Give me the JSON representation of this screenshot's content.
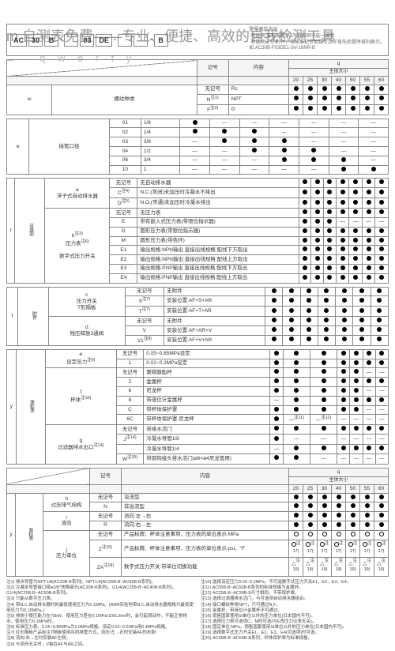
{
  "watermark": "m 自测表免费——专业、便捷、高效的自我检测工具",
  "wm2": "ch360",
  "qwerty": "q w e r t y",
  "header": {
    "cells": [
      "AC",
      "30",
      "B",
      "",
      "03",
      "DE",
      "",
      "",
      "B"
    ],
    "seps": [
      "",
      "",
      "",
      "-",
      "",
      "",
      "-",
      "",
      "-",
      ""
    ],
    "note_title": "型号表示方法",
    "notes": [
      "·可选项:准标准是从a~j的各项中选一通项",
      "·可选项记号:附件，准标准记号依数字及字母先后提序排列表示。",
      "如:AC30B-F03DE1-SV-16NR-B"
    ]
  },
  "th": {
    "mark": "记号",
    "content": "内容",
    "q": "q",
    "body": "主体大小"
  },
  "qcols": [
    "20",
    "25",
    "30",
    "40",
    "50",
    "55",
    "60"
  ],
  "sec_w": {
    "key": "w",
    "label": "螺纹种类",
    "rows": [
      {
        "m": "无记号",
        "c": "Rc",
        "v": [
          "●",
          "●",
          "●",
          "●",
          "●",
          "●",
          "●"
        ]
      },
      {
        "m": "N<sup>注1)</sup>",
        "c": "NPT",
        "v": [
          "●",
          "●",
          "●",
          "●",
          "●",
          "●",
          "●"
        ]
      },
      {
        "m": "F<sup>注2)</sup>",
        "c": "G",
        "v": [
          "●",
          "●",
          "●",
          "●",
          "●",
          "●",
          "●"
        ]
      }
    ]
  },
  "sec_e": {
    "key": "e",
    "label": "接管口径",
    "rows": [
      {
        "m": "01",
        "c": "1/8",
        "v": [
          "●",
          "—",
          "—",
          "—",
          "—",
          "—",
          "—"
        ]
      },
      {
        "m": "02",
        "c": "1/4",
        "v": [
          "●",
          "●",
          "●",
          "—",
          "—",
          "—",
          "—"
        ]
      },
      {
        "m": "03",
        "c": "3/8",
        "v": [
          "—",
          "●",
          "●",
          "●",
          "—",
          "—",
          "—"
        ]
      },
      {
        "m": "04",
        "c": "1/2",
        "v": [
          "—",
          "—",
          "●",
          "●",
          "●",
          "—",
          "—"
        ]
      },
      {
        "m": "06",
        "c": "3/4",
        "v": [
          "—",
          "—",
          "—",
          "●",
          "●",
          "●",
          "—"
        ]
      },
      {
        "m": "10",
        "c": "1",
        "v": [
          "—",
          "—",
          "—",
          "—",
          "—",
          "●",
          "●"
        ]
      }
    ]
  },
  "sec_r": {
    "key": "r",
    "side": "可选项",
    "grp_a": {
      "k": "a",
      "label": "浮子式自动排水器",
      "rows": [
        {
          "m": "无记号",
          "c": "无自动排水器",
          "v": [
            "●",
            "●",
            "●",
            "●",
            "●",
            "●",
            "●"
          ]
        },
        {
          "m": "C<sup>注4)</sup>",
          "c": "N.C.(常闭)未加压时冷凝水不排出",
          "v": [
            "●",
            "●",
            "●",
            "●",
            "●",
            "●",
            "●"
          ]
        },
        {
          "m": "D<sup>注5)</sup>",
          "c": "N.O.(常通)未加压时冷凝水排出",
          "v": [
            "●",
            "●",
            "●",
            "●",
            "●",
            "●",
            "●"
          ]
        }
      ]
    },
    "grp_b": {
      "k": "b<sup>注3)</sup>",
      "label": "压力表<sup>注6)</sup>",
      "rows": [
        {
          "m": "无记号",
          "c": "无压力表",
          "v": [
            "●",
            "●",
            "●",
            "●",
            "●",
            "●",
            "●"
          ]
        },
        {
          "m": "E",
          "c": "带有嵌入式压力表(带限位指示器)",
          "v": [
            "●",
            "●",
            "●",
            "—",
            "—",
            "—",
            "—"
          ]
        },
        {
          "m": "G",
          "c": "圆形压力表(常限位指示器)",
          "v": [
            "●",
            "●",
            "●",
            "●",
            "●",
            "●",
            "●"
          ]
        },
        {
          "m": "M",
          "c": "圆形压力表(带色环)",
          "v": [
            "●",
            "●",
            "●",
            "●",
            "●",
            "●",
            "●"
          ]
        }
      ]
    },
    "grp_c": {
      "label": "数字式压力开关",
      "rows": [
        {
          "m": "E1",
          "c": "输出规格:NPN输出 直接出线规格:配线下方取出",
          "v": [
            "●",
            "●",
            "●",
            "●",
            "●",
            "●",
            "●"
          ]
        },
        {
          "m": "E2",
          "c": "输出规格:NPN输出 直接出线规格:配线上方取出",
          "v": [
            "●",
            "●",
            "●",
            "●",
            "●",
            "●",
            "●"
          ]
        },
        {
          "m": "E3",
          "c": "输出规格:PNP输出 直接出线规格:配线下方取出",
          "v": [
            "●",
            "●",
            "●",
            "●",
            "●",
            "●",
            "●"
          ]
        },
        {
          "m": "E4",
          "c": "输出规格:PNP输出 直接出线规格:配线上方取出",
          "v": [
            "●",
            "●",
            "●",
            "●",
            "●",
            "●",
            "●"
          ]
        }
      ]
    }
  },
  "sec_t": {
    "key": "t",
    "side": "附件",
    "grp_c": {
      "k": "c",
      "label": "压力开关",
      "rows": [
        {
          "m": "无记号",
          "c": "无附件",
          "v": [
            "●",
            "●",
            "●",
            "●",
            "●",
            "●",
            "●"
          ]
        },
        {
          "m": "S<sup>注7)</sup>",
          "c": "安装位置:AF+S+AR",
          "v": [
            "●",
            "●",
            "●",
            "●",
            "●",
            "●",
            "●"
          ]
        }
      ]
    },
    "grp_t": {
      "label": "T形隔板",
      "rows": [
        {
          "m": "T<sup>注7)</sup>",
          "c": "安装位置:AF+T+AR",
          "v": [
            "●",
            "●",
            "●",
            "●",
            "●",
            "●",
            "●"
          ]
        }
      ]
    },
    "grp_d": {
      "k": "d",
      "label": "残压释放3通阀",
      "rows": [
        {
          "m": "无记号",
          "c": "无附件",
          "v": [
            "●",
            "●",
            "●",
            "●",
            "●",
            "●",
            "●"
          ]
        },
        {
          "m": "V",
          "c": "安装位置:AF+AR+V",
          "v": [
            "●",
            "●",
            "●",
            "●",
            "●",
            "●",
            "●"
          ]
        },
        {
          "m": "V1<sup>注8)</sup>",
          "c": "安装位置:AF+V+AR",
          "v": [
            "●",
            "●",
            "●",
            "●",
            "●",
            "●",
            "●"
          ]
        }
      ]
    }
  },
  "sec_y": {
    "key": "y",
    "side": "准标准",
    "grp_e": {
      "k": "e",
      "label": "设定压力<sup>注9)</sup>",
      "rows": [
        {
          "m": "无记号",
          "c": "0.05~0.85MPa设定",
          "v": [
            "●",
            "●",
            "●",
            "●",
            "●",
            "●",
            "●"
          ]
        },
        {
          "m": "1",
          "c": "0.02~0.2MPa设定",
          "v": [
            "●",
            "●",
            "●",
            "●",
            "●",
            "●",
            "●"
          ]
        }
      ]
    },
    "grp_f": {
      "k": "f",
      "label": "杯体<sup>注10)</sup>",
      "rows": [
        {
          "m": "无记号",
          "c": "聚碳酸酯杯",
          "v": [
            "●",
            "●",
            "●",
            "●",
            "●",
            "—",
            "—"
          ]
        },
        {
          "m": "2",
          "c": "金属杯",
          "v": [
            "●",
            "●",
            "●",
            "●",
            "●",
            "●",
            "●"
          ]
        },
        {
          "m": "6",
          "c": "尼龙杯",
          "v": [
            "●",
            "●",
            "●",
            "●",
            "●",
            "—",
            "—"
          ]
        },
        {
          "m": "8",
          "c": "带液位计金属杯",
          "v": [
            "—",
            "●",
            "●",
            "●",
            "●",
            "●",
            "●"
          ]
        },
        {
          "m": "C",
          "c": "带杯体保护罩",
          "v": [
            "●",
            "●",
            "●",
            "●",
            "●",
            "—",
            "—"
          ]
        },
        {
          "m": "6C",
          "c": "带杯体保护罩·尼龙杯",
          "v": [
            "●",
            "—<sup>注11)</sup>",
            "—<sup>注11)</sup>",
            "—",
            "—",
            "—",
            "—"
          ]
        }
      ]
    },
    "grp_g": {
      "k": "g",
      "label": "过滤器排水出口<sup>注14)</sup>",
      "rows": [
        {
          "m": "无记号",
          "c": "带排水活门",
          "v": [
            "●",
            "●",
            "●",
            "●",
            "●",
            "●",
            "●"
          ]
        },
        {
          "m": "J<sup>注14)</sup>",
          "c": "冷凝水导管1/8",
          "v": [
            "●",
            "—",
            "—",
            "—",
            "—",
            "—",
            "—"
          ]
        },
        {
          "m": "",
          "c": "冷凝水导管1/4",
          "v": [
            "—",
            "●",
            "●",
            "●",
            "●",
            "●",
            "●"
          ]
        },
        {
          "m": "W<sup>注15)</sup>",
          "c": "带倒钩接头排水活门(ø6×ø4尼龙管用)",
          "v": [
            "●",
            "●",
            "—",
            "—",
            "—",
            "—",
            "—"
          ]
        }
      ]
    }
  },
  "sec_y2": {
    "key": "y",
    "side": "准标准",
    "grp_h": {
      "k": "h",
      "label": "过压排气结构",
      "rows": [
        {
          "m": "无记号",
          "c": "溢流型",
          "v": [
            "●",
            "●",
            "●",
            "●",
            "●",
            "●",
            "●"
          ]
        },
        {
          "m": "N",
          "c": "非溢流型",
          "v": [
            "●",
            "●",
            "●",
            "●",
            "●",
            "●",
            "●"
          ]
        }
      ]
    },
    "grp_i": {
      "k": "i",
      "label": "流向",
      "rows": [
        {
          "m": "无记号",
          "c": "流向:左→右",
          "v": [
            "●",
            "●",
            "●",
            "●",
            "●",
            "●",
            "●"
          ]
        },
        {
          "m": "R",
          "c": "流向:右→左",
          "v": [
            "●",
            "●",
            "●",
            "●",
            "●",
            "●",
            "●"
          ]
        }
      ]
    },
    "grp_j": {
      "k": "j",
      "label": "压力单位",
      "rows": [
        {
          "m": "无记号",
          "c": "产品标牌、杯体注意事项、压力表的单位表示:MPa",
          "v": [
            "○",
            "○",
            "○",
            "○",
            "○",
            "○",
            "○"
          ]
        },
        {
          "m": "Z<sup>注16)</sup>",
          "c": "产品标牌、杯体注意事项、压力表的单位表示:psi、°F",
          "v": [
            "○<sup>注17)</sup>",
            "○<sup>注17)</sup>",
            "○<sup>注17)</sup>",
            "○<sup>注17)</sup>",
            "○<sup>注17)</sup>",
            "○<sup>注17)</sup>",
            "○<sup>注17)</sup>"
          ]
        },
        {
          "m": "ZA<sup>注18)</sup>",
          "c": "数字式压力开关:带单位切换功能",
          "v": [
            "△<sup>注19)</sup>",
            "△<sup>注19)</sup>",
            "△<sup>注19)</sup>",
            "△<sup>注19)</sup>",
            "△<sup>注19)</sup>",
            "△<sup>注19)</sup>",
            "△<sup>注19)</sup>"
          ]
        }
      ]
    }
  },
  "footnotes": [
    "注1) 排水导管为NPT1/8(AC20B-B系列)、NPT1/4(AC25B-B~AC60B-B系列)。",
    "注2) 冷凝水导管接口带ø3/8\"快换接头(AC20B-B系列)、G1/4(AC25B-B~AC40B-B系列)。G1/4(AC25B-B~AC60B-B系列)。",
    "注3) 只能从数字压力表。",
    "注4) 带N.C.自动排水器时的最低使用压力为0.1MPa。(ANR实验地带N.C.自动排水器规格为最低使用压力为0.15MPa。)",
    "注5) 排放小使压能力在75kW、使用压力差在0.1MPa/100L/min时，会引起误动作，不能正常排水。使用压力0.1MPa时。",
    "注6) 标准压力表。0.05~0.85MPa为1.0MPa规格。设定0.02~0.2MPa用0.4MPa规格。",
    "注7) 红形隔板产品标注T隔板使用共同排管方式。流向:左→右时安装AF的右侧;",
    "注8) 流向:右→左时安装AF左侧。",
    "注9) 与流向无关时，V装在AF与AR之间。",
    "注10) 选择设定压力0.02~0.2MPa、不可选数字式压力开关E1、E2、E3、E4。",
    "注11) AC55B-B~AC60B-B系列的标准规格为金属杯。",
    "注12) AC25B-B~AC30B-B尺寸相同，不带保护罩。",
    "注13) 选择过滤器排水活门，与可选项自动排水器组合。",
    "注14) 接口螺纹种类NPT，只可通过N,F。",
    "注15) 金属杯、带液位计金属杯不可通过。",
    "注16) 销售国家使用SI单位以外的压力单位(日本国内不可)。",
    "注17) 选择压力表可选项C、M时可选(与E改压力仪表无关)。",
    "注18) 固定单位:MPa。销售国家使用SI单位以外的压力单位(日本国内不可)。",
    "注19) 选择数字式压力开关E1、E2、E3、E4(可选项)时可选。",
    "注20) AC55B-B~AC60B-B系列，杯体保护罩为标准规格。"
  ]
}
